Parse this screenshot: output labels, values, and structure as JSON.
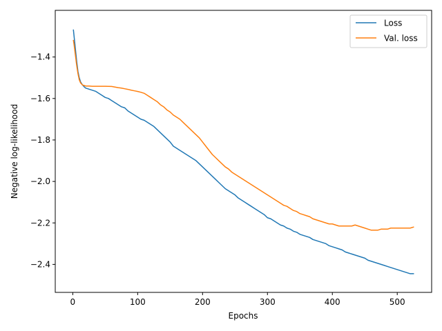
{
  "chart_data": {
    "type": "line",
    "xlabel": "Epochs",
    "ylabel": "Negative log-likelihood",
    "xlim": [
      -27,
      553
    ],
    "ylim": [
      -2.535,
      -1.175
    ],
    "x_ticks": [
      0,
      100,
      200,
      300,
      400,
      500
    ],
    "y_ticks": [
      -2.4,
      -2.2,
      -2.0,
      -1.8,
      -1.6,
      -1.4
    ],
    "x_tick_labels": [
      "0",
      "100",
      "200",
      "300",
      "400",
      "500"
    ],
    "y_tick_labels": [
      "−2.4",
      "−2.2",
      "−2.0",
      "−1.8",
      "−1.6",
      "−1.4"
    ],
    "grid": false,
    "legend": {
      "placement": "top-right"
    },
    "series": [
      {
        "name": "Loss",
        "color": "#1f77b4",
        "points": [
          [
            1,
            -1.27
          ],
          [
            2,
            -1.3
          ],
          [
            4,
            -1.36
          ],
          [
            6,
            -1.42
          ],
          [
            8,
            -1.47
          ],
          [
            10,
            -1.5
          ],
          [
            12,
            -1.52
          ],
          [
            15,
            -1.535
          ],
          [
            18,
            -1.545
          ],
          [
            20,
            -1.55
          ],
          [
            25,
            -1.555
          ],
          [
            30,
            -1.56
          ],
          [
            35,
            -1.565
          ],
          [
            40,
            -1.575
          ],
          [
            45,
            -1.585
          ],
          [
            50,
            -1.595
          ],
          [
            55,
            -1.6
          ],
          [
            60,
            -1.61
          ],
          [
            65,
            -1.62
          ],
          [
            70,
            -1.63
          ],
          [
            75,
            -1.64
          ],
          [
            80,
            -1.645
          ],
          [
            85,
            -1.66
          ],
          [
            90,
            -1.67
          ],
          [
            95,
            -1.68
          ],
          [
            100,
            -1.69
          ],
          [
            105,
            -1.7
          ],
          [
            110,
            -1.705
          ],
          [
            115,
            -1.715
          ],
          [
            120,
            -1.725
          ],
          [
            125,
            -1.735
          ],
          [
            130,
            -1.75
          ],
          [
            135,
            -1.765
          ],
          [
            140,
            -1.78
          ],
          [
            145,
            -1.795
          ],
          [
            150,
            -1.81
          ],
          [
            155,
            -1.83
          ],
          [
            160,
            -1.84
          ],
          [
            165,
            -1.85
          ],
          [
            170,
            -1.86
          ],
          [
            175,
            -1.87
          ],
          [
            180,
            -1.88
          ],
          [
            185,
            -1.89
          ],
          [
            190,
            -1.9
          ],
          [
            195,
            -1.915
          ],
          [
            200,
            -1.93
          ],
          [
            205,
            -1.945
          ],
          [
            210,
            -1.96
          ],
          [
            215,
            -1.975
          ],
          [
            220,
            -1.99
          ],
          [
            225,
            -2.005
          ],
          [
            230,
            -2.02
          ],
          [
            235,
            -2.035
          ],
          [
            240,
            -2.045
          ],
          [
            245,
            -2.055
          ],
          [
            250,
            -2.065
          ],
          [
            255,
            -2.08
          ],
          [
            260,
            -2.09
          ],
          [
            265,
            -2.1
          ],
          [
            270,
            -2.11
          ],
          [
            275,
            -2.12
          ],
          [
            280,
            -2.13
          ],
          [
            285,
            -2.14
          ],
          [
            290,
            -2.15
          ],
          [
            295,
            -2.16
          ],
          [
            300,
            -2.175
          ],
          [
            305,
            -2.18
          ],
          [
            310,
            -2.19
          ],
          [
            315,
            -2.2
          ],
          [
            320,
            -2.21
          ],
          [
            325,
            -2.215
          ],
          [
            330,
            -2.225
          ],
          [
            335,
            -2.23
          ],
          [
            340,
            -2.24
          ],
          [
            345,
            -2.245
          ],
          [
            350,
            -2.255
          ],
          [
            355,
            -2.26
          ],
          [
            360,
            -2.265
          ],
          [
            365,
            -2.27
          ],
          [
            370,
            -2.28
          ],
          [
            375,
            -2.285
          ],
          [
            380,
            -2.29
          ],
          [
            385,
            -2.295
          ],
          [
            390,
            -2.3
          ],
          [
            395,
            -2.31
          ],
          [
            400,
            -2.315
          ],
          [
            405,
            -2.32
          ],
          [
            410,
            -2.325
          ],
          [
            415,
            -2.33
          ],
          [
            420,
            -2.34
          ],
          [
            425,
            -2.345
          ],
          [
            430,
            -2.35
          ],
          [
            435,
            -2.355
          ],
          [
            440,
            -2.36
          ],
          [
            445,
            -2.365
          ],
          [
            450,
            -2.37
          ],
          [
            455,
            -2.38
          ],
          [
            460,
            -2.385
          ],
          [
            465,
            -2.39
          ],
          [
            470,
            -2.395
          ],
          [
            475,
            -2.4
          ],
          [
            480,
            -2.405
          ],
          [
            485,
            -2.41
          ],
          [
            490,
            -2.415
          ],
          [
            495,
            -2.42
          ],
          [
            500,
            -2.425
          ],
          [
            505,
            -2.43
          ],
          [
            510,
            -2.435
          ],
          [
            515,
            -2.44
          ],
          [
            520,
            -2.445
          ],
          [
            525,
            -2.445
          ]
        ]
      },
      {
        "name": "Val. loss",
        "color": "#ff7f0e",
        "points": [
          [
            1,
            -1.32
          ],
          [
            2,
            -1.34
          ],
          [
            4,
            -1.39
          ],
          [
            6,
            -1.44
          ],
          [
            8,
            -1.48
          ],
          [
            10,
            -1.51
          ],
          [
            12,
            -1.525
          ],
          [
            15,
            -1.535
          ],
          [
            20,
            -1.54
          ],
          [
            25,
            -1.54
          ],
          [
            30,
            -1.541
          ],
          [
            40,
            -1.541
          ],
          [
            50,
            -1.541
          ],
          [
            60,
            -1.542
          ],
          [
            65,
            -1.545
          ],
          [
            70,
            -1.548
          ],
          [
            75,
            -1.55
          ],
          [
            80,
            -1.553
          ],
          [
            85,
            -1.556
          ],
          [
            90,
            -1.56
          ],
          [
            95,
            -1.563
          ],
          [
            100,
            -1.566
          ],
          [
            105,
            -1.57
          ],
          [
            110,
            -1.575
          ],
          [
            115,
            -1.585
          ],
          [
            120,
            -1.595
          ],
          [
            125,
            -1.605
          ],
          [
            130,
            -1.615
          ],
          [
            135,
            -1.63
          ],
          [
            140,
            -1.64
          ],
          [
            145,
            -1.655
          ],
          [
            150,
            -1.665
          ],
          [
            155,
            -1.68
          ],
          [
            160,
            -1.69
          ],
          [
            165,
            -1.7
          ],
          [
            170,
            -1.715
          ],
          [
            175,
            -1.73
          ],
          [
            180,
            -1.745
          ],
          [
            185,
            -1.76
          ],
          [
            190,
            -1.775
          ],
          [
            195,
            -1.79
          ],
          [
            200,
            -1.81
          ],
          [
            205,
            -1.83
          ],
          [
            210,
            -1.85
          ],
          [
            215,
            -1.87
          ],
          [
            220,
            -1.885
          ],
          [
            225,
            -1.9
          ],
          [
            230,
            -1.915
          ],
          [
            235,
            -1.93
          ],
          [
            240,
            -1.94
          ],
          [
            245,
            -1.955
          ],
          [
            250,
            -1.965
          ],
          [
            255,
            -1.975
          ],
          [
            260,
            -1.985
          ],
          [
            265,
            -1.995
          ],
          [
            270,
            -2.005
          ],
          [
            275,
            -2.015
          ],
          [
            280,
            -2.025
          ],
          [
            285,
            -2.035
          ],
          [
            290,
            -2.045
          ],
          [
            295,
            -2.055
          ],
          [
            300,
            -2.065
          ],
          [
            305,
            -2.075
          ],
          [
            310,
            -2.085
          ],
          [
            315,
            -2.095
          ],
          [
            320,
            -2.105
          ],
          [
            325,
            -2.115
          ],
          [
            330,
            -2.12
          ],
          [
            335,
            -2.13
          ],
          [
            340,
            -2.14
          ],
          [
            345,
            -2.145
          ],
          [
            350,
            -2.155
          ],
          [
            355,
            -2.16
          ],
          [
            360,
            -2.165
          ],
          [
            365,
            -2.17
          ],
          [
            370,
            -2.18
          ],
          [
            375,
            -2.185
          ],
          [
            380,
            -2.19
          ],
          [
            385,
            -2.195
          ],
          [
            390,
            -2.2
          ],
          [
            395,
            -2.205
          ],
          [
            400,
            -2.205
          ],
          [
            405,
            -2.21
          ],
          [
            410,
            -2.215
          ],
          [
            415,
            -2.215
          ],
          [
            420,
            -2.215
          ],
          [
            425,
            -2.215
          ],
          [
            430,
            -2.215
          ],
          [
            435,
            -2.21
          ],
          [
            440,
            -2.215
          ],
          [
            445,
            -2.22
          ],
          [
            450,
            -2.225
          ],
          [
            455,
            -2.23
          ],
          [
            460,
            -2.235
          ],
          [
            465,
            -2.235
          ],
          [
            470,
            -2.235
          ],
          [
            475,
            -2.23
          ],
          [
            480,
            -2.23
          ],
          [
            485,
            -2.23
          ],
          [
            490,
            -2.225
          ],
          [
            495,
            -2.225
          ],
          [
            500,
            -2.225
          ],
          [
            505,
            -2.225
          ],
          [
            510,
            -2.225
          ],
          [
            515,
            -2.225
          ],
          [
            520,
            -2.225
          ],
          [
            525,
            -2.22
          ]
        ]
      }
    ]
  }
}
